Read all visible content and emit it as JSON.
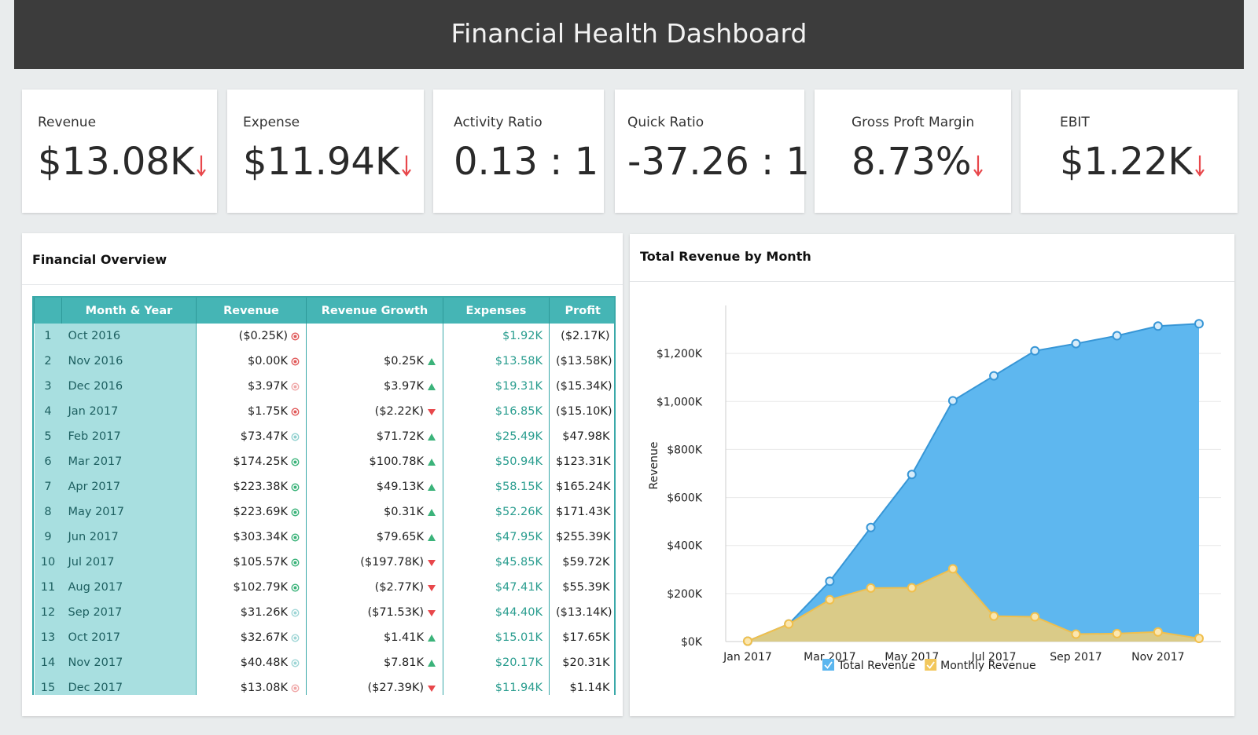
{
  "header": {
    "title": "Financial Health Dashboard"
  },
  "kpis": [
    {
      "label": "Revenue",
      "value": "$13.08K",
      "trend": "down"
    },
    {
      "label": "Expense",
      "value": "$11.94K",
      "trend": "down"
    },
    {
      "label": "Activity Ratio",
      "value": "0.13 : 1"
    },
    {
      "label": "Quick Ratio",
      "value": "-37.26 : 1"
    },
    {
      "label": "Gross Proft Margin",
      "value": "8.73%",
      "trend": "down"
    },
    {
      "label": "EBIT",
      "value": "$1.22K",
      "trend": "down"
    }
  ],
  "table": {
    "title": "Financial Overview",
    "columns": [
      "Month & Year",
      "Revenue",
      "Revenue Growth",
      "Expenses",
      "Profit"
    ],
    "rows": [
      [
        1,
        "Oct 2016",
        "($0.25K)",
        null,
        "$1.92K",
        "($2.17K)"
      ],
      [
        2,
        "Nov 2016",
        "$0.00K",
        "$0.25K",
        "$13.58K",
        "($13.58K)"
      ],
      [
        3,
        "Dec 2016",
        "$3.97K",
        "$3.97K",
        "$19.31K",
        "($15.34K)"
      ],
      [
        4,
        "Jan 2017",
        "$1.75K",
        "($2.22K)",
        "$16.85K",
        "($15.10K)"
      ],
      [
        5,
        "Feb 2017",
        "$73.47K",
        "$71.72K",
        "$25.49K",
        "$47.98K"
      ],
      [
        6,
        "Mar 2017",
        "$174.25K",
        "$100.78K",
        "$50.94K",
        "$123.31K"
      ],
      [
        7,
        "Apr 2017",
        "$223.38K",
        "$49.13K",
        "$58.15K",
        "$165.24K"
      ],
      [
        8,
        "May 2017",
        "$223.69K",
        "$0.31K",
        "$52.26K",
        "$171.43K"
      ],
      [
        9,
        "Jun 2017",
        "$303.34K",
        "$79.65K",
        "$47.95K",
        "$255.39K"
      ],
      [
        10,
        "Jul 2017",
        "$105.57K",
        "($197.78K)",
        "$45.85K",
        "$59.72K"
      ],
      [
        11,
        "Aug 2017",
        "$102.79K",
        "($2.77K)",
        "$47.41K",
        "$55.39K"
      ],
      [
        12,
        "Sep 2017",
        "$31.26K",
        "($71.53K)",
        "$44.40K",
        "($13.14K)"
      ],
      [
        13,
        "Oct 2017",
        "$32.67K",
        "$1.41K",
        "$15.01K",
        "$17.65K"
      ],
      [
        14,
        "Nov 2017",
        "$40.48K",
        "$7.81K",
        "$20.17K",
        "$20.31K"
      ],
      [
        15,
        "Dec 2017",
        "$13.08K",
        "($27.39K)",
        "$11.94K",
        "$1.14K"
      ]
    ],
    "revenue_status_colors": [
      "#e05a5a",
      "#e05a5a",
      "#f0a8a8",
      "#e05a5a",
      "#8fd0cf",
      "#3bb37a",
      "#3bb37a",
      "#3bb37a",
      "#3bb37a",
      "#3bb37a",
      "#3bb37a",
      "#9fd6d6",
      "#9fd6d6",
      "#9fd6d6",
      "#f0a8a8"
    ]
  },
  "chart_data": {
    "type": "area",
    "title": "Total Revenue by Month",
    "y_label": "Revenue",
    "categories": [
      "Jan 2017",
      null,
      "Mar 2017",
      null,
      "May 2017",
      null,
      "Jul 2017",
      null,
      "Sep 2017",
      null,
      "Nov 2017",
      null
    ],
    "series": [
      {
        "name": "Total Revenue",
        "color": "#5bb6ef",
        "values": [
          1.75,
          73,
          251,
          475,
          696,
          1003,
          1107,
          1211,
          1241,
          1274,
          1314,
          1324
        ]
      },
      {
        "name": "Monthly Revenue",
        "color": "#f2c75c",
        "values": [
          1.75,
          73,
          174,
          223,
          224,
          303,
          106,
          103,
          31,
          33,
          40,
          13
        ]
      }
    ],
    "ylim": [
      0,
      1400
    ],
    "yticks": [
      {
        "value": 0,
        "label": "$0K"
      },
      {
        "value": 200,
        "label": "$200K"
      },
      {
        "value": 400,
        "label": "$400K"
      },
      {
        "value": 600,
        "label": "$600K"
      },
      {
        "value": 800,
        "label": "$800K"
      },
      {
        "value": 1000,
        "label": "$1,000K"
      },
      {
        "value": 1200,
        "label": "$1,200K"
      }
    ],
    "grid": true
  }
}
